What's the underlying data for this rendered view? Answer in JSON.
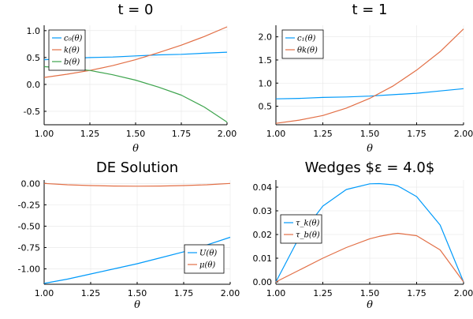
{
  "colors": {
    "c1": "#009AFA",
    "c2": "#E26F46",
    "c3": "#3DA44D"
  },
  "chart_data": [
    {
      "type": "line",
      "title": "t = 0",
      "xlabel": "θ",
      "ylabel": "",
      "xlim": [
        1.0,
        2.0
      ],
      "ylim": [
        -0.75,
        1.1
      ],
      "xticks": [
        1.0,
        1.25,
        1.5,
        1.75,
        2.0
      ],
      "xtick_labels": [
        "1.00",
        "1.25",
        "1.50",
        "1.75",
        "2.00"
      ],
      "yticks": [
        -0.5,
        0.0,
        0.5,
        1.0
      ],
      "ytick_labels": [
        "-0.5",
        "0.0",
        "0.5",
        "1.0"
      ],
      "grid": true,
      "legend": "top-left",
      "x": [
        1.0,
        1.125,
        1.25,
        1.375,
        1.5,
        1.625,
        1.75,
        1.875,
        2.0
      ],
      "series": [
        {
          "name": "c₀(θ)",
          "color": "c1",
          "values": [
            0.46,
            0.48,
            0.5,
            0.51,
            0.53,
            0.55,
            0.56,
            0.58,
            0.6
          ]
        },
        {
          "name": "k(θ)",
          "color": "c2",
          "values": [
            0.13,
            0.19,
            0.26,
            0.35,
            0.46,
            0.59,
            0.73,
            0.89,
            1.07
          ]
        },
        {
          "name": "b(θ)",
          "color": "c3",
          "values": [
            0.33,
            0.3,
            0.26,
            0.18,
            0.08,
            -0.05,
            -0.2,
            -0.42,
            -0.7
          ]
        }
      ]
    },
    {
      "type": "line",
      "title": "t = 1",
      "xlabel": "θ",
      "ylabel": "",
      "xlim": [
        1.0,
        2.0
      ],
      "ylim": [
        0.1,
        2.25
      ],
      "xticks": [
        1.0,
        1.25,
        1.5,
        1.75,
        2.0
      ],
      "xtick_labels": [
        "1.00",
        "1.25",
        "1.50",
        "1.75",
        "2.00"
      ],
      "yticks": [
        0.5,
        1.0,
        1.5,
        2.0
      ],
      "ytick_labels": [
        "0.5",
        "1.0",
        "1.5",
        "2.0"
      ],
      "grid": true,
      "legend": "top-left",
      "x": [
        1.0,
        1.125,
        1.25,
        1.375,
        1.5,
        1.625,
        1.75,
        1.875,
        2.0
      ],
      "series": [
        {
          "name": "c₁(θ)",
          "color": "c1",
          "values": [
            0.66,
            0.67,
            0.69,
            0.7,
            0.72,
            0.75,
            0.78,
            0.83,
            0.88
          ]
        },
        {
          "name": "θk(θ)",
          "color": "c2",
          "values": [
            0.13,
            0.2,
            0.3,
            0.46,
            0.67,
            0.94,
            1.28,
            1.68,
            2.17
          ]
        }
      ]
    },
    {
      "type": "line",
      "title": "DE Solution",
      "xlabel": "θ",
      "ylabel": "",
      "xlim": [
        1.0,
        2.0
      ],
      "ylim": [
        -1.18,
        0.04
      ],
      "xticks": [
        1.0,
        1.25,
        1.5,
        1.75,
        2.0
      ],
      "xtick_labels": [
        "1.00",
        "1.25",
        "1.50",
        "1.75",
        "2.00"
      ],
      "yticks": [
        -1.0,
        -0.75,
        -0.5,
        -0.25,
        0.0
      ],
      "ytick_labels": [
        "-1.00",
        "-0.75",
        "-0.50",
        "-0.25",
        "0.00"
      ],
      "grid": true,
      "legend": "bottom-right",
      "x": [
        1.0,
        1.125,
        1.25,
        1.375,
        1.5,
        1.625,
        1.75,
        1.875,
        2.0
      ],
      "series": [
        {
          "name": "U(θ)",
          "color": "c1",
          "values": [
            -1.17,
            -1.12,
            -1.06,
            -1.0,
            -0.94,
            -0.87,
            -0.8,
            -0.72,
            -0.63
          ]
        },
        {
          "name": "μ(θ)",
          "color": "c2",
          "values": [
            0.0,
            -0.015,
            -0.025,
            -0.03,
            -0.032,
            -0.03,
            -0.025,
            -0.015,
            0.0
          ]
        }
      ]
    },
    {
      "type": "line",
      "title": "Wedges $ε = 4.0$",
      "xlabel": "θ",
      "ylabel": "",
      "xlim": [
        1.0,
        2.0
      ],
      "ylim": [
        -0.001,
        0.043
      ],
      "xticks": [
        1.0,
        1.25,
        1.5,
        1.75,
        2.0
      ],
      "xtick_labels": [
        "1.00",
        "1.25",
        "1.50",
        "1.75",
        "2.00"
      ],
      "yticks": [
        0.0,
        0.01,
        0.02,
        0.03,
        0.04
      ],
      "ytick_labels": [
        "0.00",
        "0.01",
        "0.02",
        "0.03",
        "0.04"
      ],
      "grid": true,
      "legend": "left",
      "x": [
        1.0,
        1.125,
        1.25,
        1.375,
        1.5,
        1.55,
        1.625,
        1.65,
        1.75,
        1.875,
        2.0
      ],
      "series": [
        {
          "name": "τ_k(θ)",
          "color": "c1",
          "values": [
            0.0,
            0.019,
            0.032,
            0.039,
            0.0414,
            0.0415,
            0.041,
            0.0405,
            0.036,
            0.024,
            0.0
          ]
        },
        {
          "name": "τ_b(θ)",
          "color": "c2",
          "values": [
            0.0,
            0.005,
            0.01,
            0.0145,
            0.0182,
            0.0192,
            0.0203,
            0.0205,
            0.0195,
            0.0135,
            0.0
          ]
        }
      ]
    }
  ]
}
